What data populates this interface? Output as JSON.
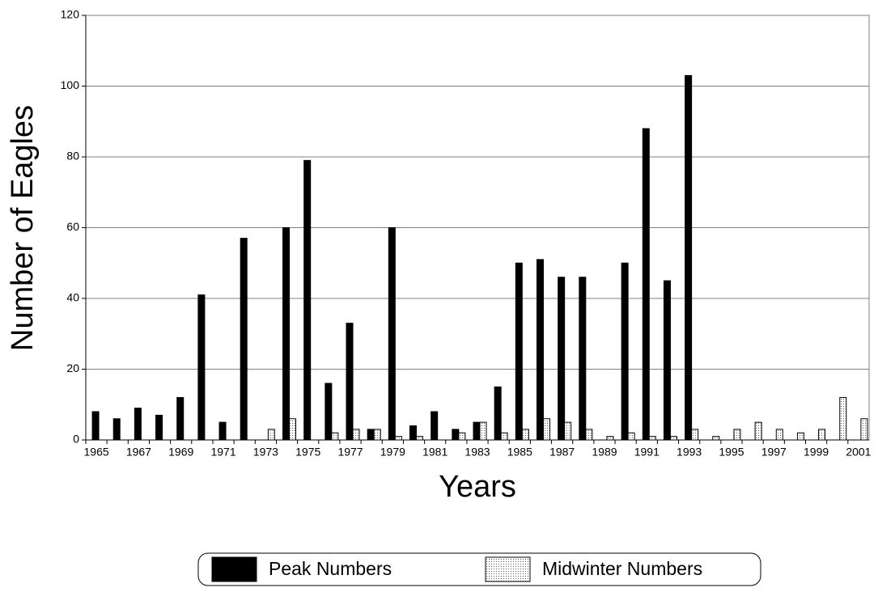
{
  "chart_data": {
    "type": "bar",
    "xlabel": "Years",
    "ylabel": "Number of Eagles",
    "categories": [
      "1965",
      null,
      "1967",
      null,
      "1969",
      null,
      "1971",
      null,
      "1973",
      null,
      "1975",
      null,
      "1977",
      null,
      "1979",
      null,
      "1981",
      null,
      "1983",
      null,
      "1985",
      null,
      "1987",
      null,
      "1989",
      null,
      "1991",
      null,
      "1993",
      null,
      "1995",
      null,
      "1997",
      null,
      "1999",
      null,
      "2001"
    ],
    "series": [
      {
        "name": "Peak Numbers",
        "color": "#000000",
        "values": [
          8,
          6,
          9,
          7,
          12,
          41,
          5,
          57,
          null,
          60,
          79,
          16,
          33,
          3,
          60,
          4,
          8,
          3,
          5,
          15,
          50,
          51,
          46,
          46,
          null,
          50,
          88,
          45,
          103,
          null,
          null,
          null,
          null,
          null,
          null,
          null,
          null
        ]
      },
      {
        "name": "Midwinter Numbers",
        "color": "#ffffff",
        "values": [
          null,
          null,
          null,
          null,
          null,
          null,
          null,
          null,
          3,
          6,
          null,
          2,
          3,
          3,
          1,
          1,
          null,
          2,
          5,
          2,
          3,
          6,
          5,
          3,
          1,
          2,
          1,
          1,
          3,
          1,
          3,
          5,
          3,
          2,
          3,
          12,
          6
        ]
      }
    ],
    "ylim": [
      0,
      120
    ],
    "yticks": [
      0,
      20,
      40,
      60,
      80,
      100,
      120
    ],
    "grid": true,
    "legend": "bottom"
  }
}
